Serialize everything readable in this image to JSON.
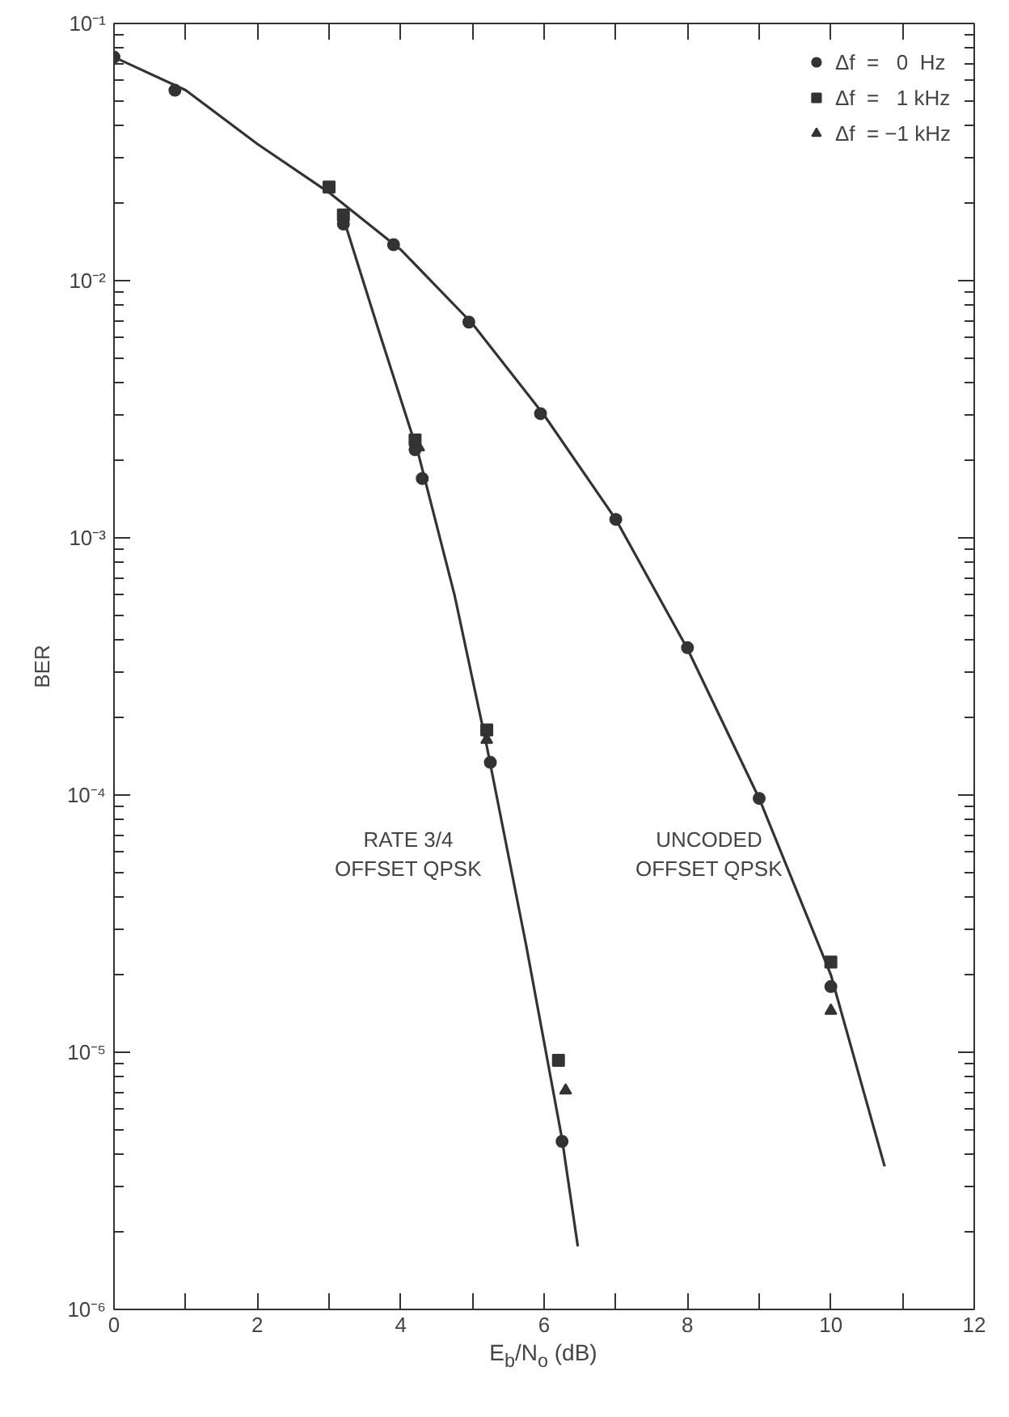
{
  "chart_data": {
    "type": "scatter",
    "xlabel": "E$_{b}$/N$_{o}$ (dB)",
    "ylabel": "BER",
    "log": "y",
    "grid": false,
    "legend": "top right",
    "xlim": [
      0,
      12
    ],
    "ylim": [
      1e-06,
      0.1
    ],
    "xticks": [
      0,
      {
        "value": 1,
        "label": null
      },
      2,
      {
        "value": 3,
        "label": null
      },
      4,
      {
        "value": 5,
        "label": null
      },
      6,
      {
        "value": 7,
        "label": null
      },
      8,
      {
        "value": 9,
        "label": null
      },
      10,
      {
        "value": 11,
        "label": null
      },
      12
    ],
    "yticks": [
      {
        "value": 1e-06,
        "label": "10⁻⁶"
      },
      {
        "value": 1e-05,
        "label": "10⁻⁵"
      },
      {
        "value": 0.0001,
        "label": "10⁻⁴"
      },
      {
        "value": 0.001,
        "label": "10⁻³"
      },
      {
        "value": 0.01,
        "label": "10⁻²"
      },
      {
        "value": 0.1,
        "label": "10⁻¹"
      }
    ],
    "series": [
      {
        "type": "line",
        "color": "#333333",
        "line_style": "solid",
        "x": [
          0,
          1,
          2,
          3,
          4,
          5,
          6,
          7,
          8,
          9,
          10,
          10.75
        ],
        "values": [
          0.074,
          0.055,
          0.034,
          0.022,
          0.0132,
          0.0068,
          0.003,
          0.00118,
          0.00037,
          9.7e-05,
          2e-05,
          3.6e-06
        ]
      },
      {
        "type": "line",
        "color": "#333333",
        "line_style": "solid",
        "x": [
          3.2,
          3.7,
          4.25,
          4.75,
          5.2,
          5.75,
          6.25,
          6.47
        ],
        "values": [
          0.0175,
          0.0063,
          0.0021,
          0.0006,
          0.000155,
          2.6e-05,
          4.6e-06,
          1.76e-06
        ]
      },
      {
        "name": "Δf  =   0  Hz",
        "marker": "circle",
        "color": "#333333",
        "x": [
          0,
          0.85,
          3.2,
          3.9,
          4.2,
          4.3,
          4.95,
          5.25,
          5.95,
          6.25,
          7,
          8,
          9,
          10
        ],
        "values": [
          0.074,
          0.055,
          0.0166,
          0.0138,
          0.0022,
          0.0017,
          0.0069,
          0.000134,
          0.00304,
          4.5e-06,
          0.00118,
          0.000374,
          9.7e-05,
          1.8e-05
        ]
      },
      {
        "name": "Δf  =   1 kHz",
        "marker": "square",
        "color": "#333333",
        "x": [
          3,
          3.2,
          4.2,
          5.2,
          6.2,
          10
        ],
        "values": [
          0.0231,
          0.018,
          0.0024,
          0.000179,
          9.3e-06,
          2.24e-05
        ]
      },
      {
        "name": "Δf  = −1 kHz",
        "marker": "triangle",
        "color": "#333333",
        "x": [
          4.25,
          5.2,
          6.3,
          10
        ],
        "values": [
          0.00225,
          0.000164,
          7.1e-06,
          1.45e-05
        ]
      }
    ],
    "annotations": [
      "RATE 3/4\nOFFSET QPSK",
      "UNCODED\nOFFSET QPSK"
    ]
  }
}
